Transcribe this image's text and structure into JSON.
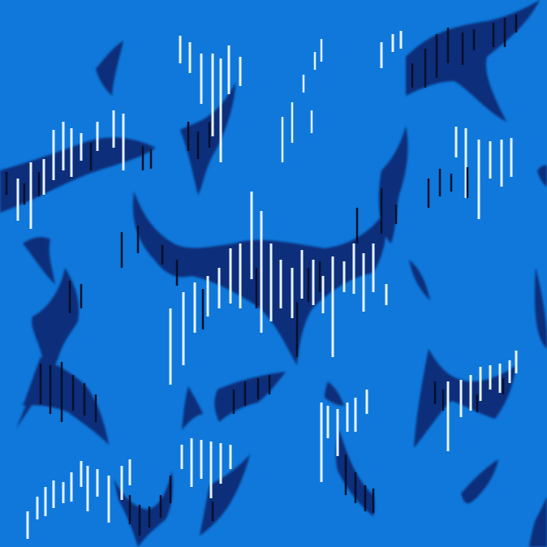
{
  "image": {
    "description_visible": "",
    "palette": {
      "water": "#0f78da",
      "shadow": "#0b2f7a",
      "shadow_deep": "#061f55",
      "streak_light": "#e7f3ff",
      "streak_dark": "#04102c"
    }
  }
}
